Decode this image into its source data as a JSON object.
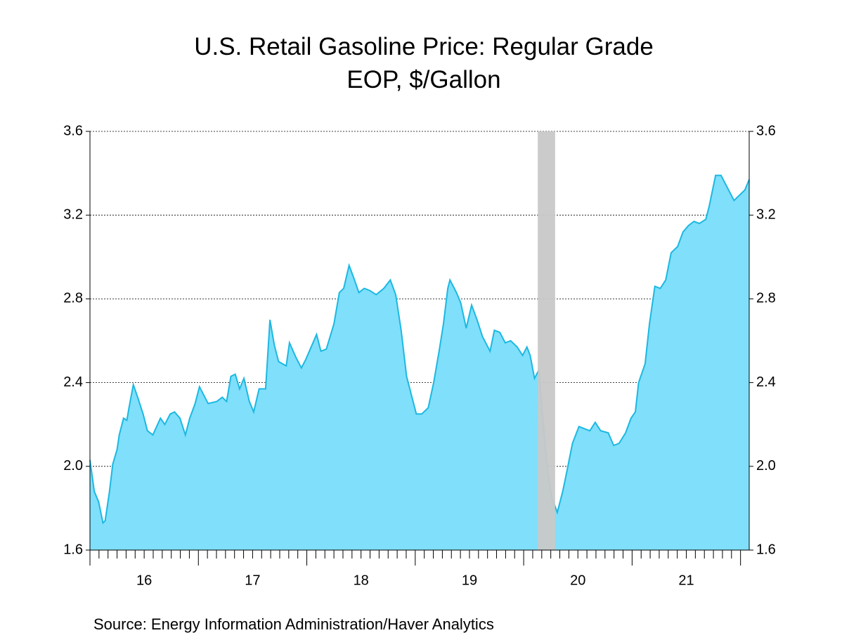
{
  "chart_data": {
    "type": "area",
    "title": "U.S. Retail Gasoline Price: Regular Grade",
    "subtitle": "EOP, $/Gallon",
    "source": "Source:  Energy Information Administration/Haver Analytics",
    "x": [
      2016.0,
      2016.04,
      2016.08,
      2016.12,
      2016.14,
      2016.18,
      2016.21,
      2016.25,
      2016.27,
      2016.31,
      2016.34,
      2016.36,
      2016.4,
      2016.44,
      2016.49,
      2016.53,
      2016.58,
      2016.65,
      2016.69,
      2016.74,
      2016.78,
      2016.83,
      2016.88,
      2016.92,
      2016.97,
      2017.01,
      2017.09,
      2017.17,
      2017.22,
      2017.26,
      2017.3,
      2017.34,
      2017.38,
      2017.42,
      2017.47,
      2017.51,
      2017.56,
      2017.62,
      2017.66,
      2017.7,
      2017.74,
      2017.81,
      2017.84,
      2017.9,
      2017.95,
      2017.99,
      2018.04,
      2018.09,
      2018.13,
      2018.18,
      2018.25,
      2018.3,
      2018.34,
      2018.39,
      2018.44,
      2018.48,
      2018.53,
      2018.58,
      2018.64,
      2018.71,
      2018.77,
      2018.82,
      2018.87,
      2018.92,
      2018.97,
      2019.01,
      2019.06,
      2019.12,
      2019.17,
      2019.22,
      2019.26,
      2019.3,
      2019.32,
      2019.38,
      2019.42,
      2019.47,
      2019.52,
      2019.57,
      2019.62,
      2019.69,
      2019.73,
      2019.78,
      2019.83,
      2019.88,
      2019.94,
      2019.99,
      2020.03,
      2020.06,
      2020.1,
      2020.14,
      2020.18,
      2020.22,
      2020.26,
      2020.31,
      2020.36,
      2020.4,
      2020.45,
      2020.51,
      2020.56,
      2020.61,
      2020.66,
      2020.71,
      2020.78,
      2020.83,
      2020.88,
      2020.94,
      2020.99,
      2021.03,
      2021.06,
      2021.12,
      2021.16,
      2021.21,
      2021.26,
      2021.31,
      2021.36,
      2021.42,
      2021.47,
      2021.52,
      2021.57,
      2021.62,
      2021.68,
      2021.71,
      2021.77,
      2021.82,
      2021.87,
      2021.94,
      2022.0,
      2022.04,
      2022.08
    ],
    "series": [
      {
        "name": "Regular Grade",
        "color": "#1cb8e2",
        "fill": "#80dffa",
        "values": [
          2.03,
          1.88,
          1.83,
          1.73,
          1.74,
          1.88,
          2.01,
          2.08,
          2.15,
          2.23,
          2.22,
          2.28,
          2.39,
          2.33,
          2.25,
          2.17,
          2.15,
          2.23,
          2.2,
          2.25,
          2.26,
          2.23,
          2.15,
          2.23,
          2.3,
          2.38,
          2.3,
          2.31,
          2.33,
          2.31,
          2.43,
          2.44,
          2.37,
          2.42,
          2.31,
          2.26,
          2.37,
          2.37,
          2.7,
          2.58,
          2.5,
          2.48,
          2.59,
          2.52,
          2.47,
          2.51,
          2.57,
          2.63,
          2.55,
          2.56,
          2.68,
          2.83,
          2.85,
          2.96,
          2.89,
          2.83,
          2.85,
          2.84,
          2.82,
          2.85,
          2.89,
          2.82,
          2.65,
          2.43,
          2.33,
          2.25,
          2.25,
          2.28,
          2.4,
          2.55,
          2.68,
          2.85,
          2.89,
          2.83,
          2.78,
          2.66,
          2.77,
          2.7,
          2.62,
          2.55,
          2.65,
          2.64,
          2.59,
          2.6,
          2.57,
          2.53,
          2.57,
          2.53,
          2.42,
          2.46,
          2.21,
          1.98,
          1.85,
          1.78,
          1.88,
          1.98,
          2.11,
          2.19,
          2.18,
          2.17,
          2.21,
          2.17,
          2.16,
          2.1,
          2.11,
          2.16,
          2.23,
          2.26,
          2.4,
          2.49,
          2.68,
          2.86,
          2.85,
          2.89,
          3.02,
          3.05,
          3.12,
          3.15,
          3.17,
          3.16,
          3.18,
          3.24,
          3.39,
          3.39,
          3.34,
          3.27,
          3.3,
          3.32,
          3.37
        ]
      }
    ],
    "shaded_periods": [
      [
        2020.13,
        2020.29
      ]
    ],
    "shade_color": "#c8c8c8",
    "xlim": [
      2016.0,
      2022.08
    ],
    "xticks": [
      {
        "value": 2016.5,
        "label": "16"
      },
      {
        "value": 2017.5,
        "label": "17"
      },
      {
        "value": 2018.5,
        "label": "18"
      },
      {
        "value": 2019.5,
        "label": "19"
      },
      {
        "value": 2020.5,
        "label": "20"
      },
      {
        "value": 2021.5,
        "label": "21"
      }
    ],
    "ylim": [
      1.6,
      3.6
    ],
    "yticks": [
      1.6,
      {
        "value": 2,
        "label": "2.0"
      },
      2.4,
      2.8,
      3.2,
      3.6
    ],
    "grid": true
  }
}
